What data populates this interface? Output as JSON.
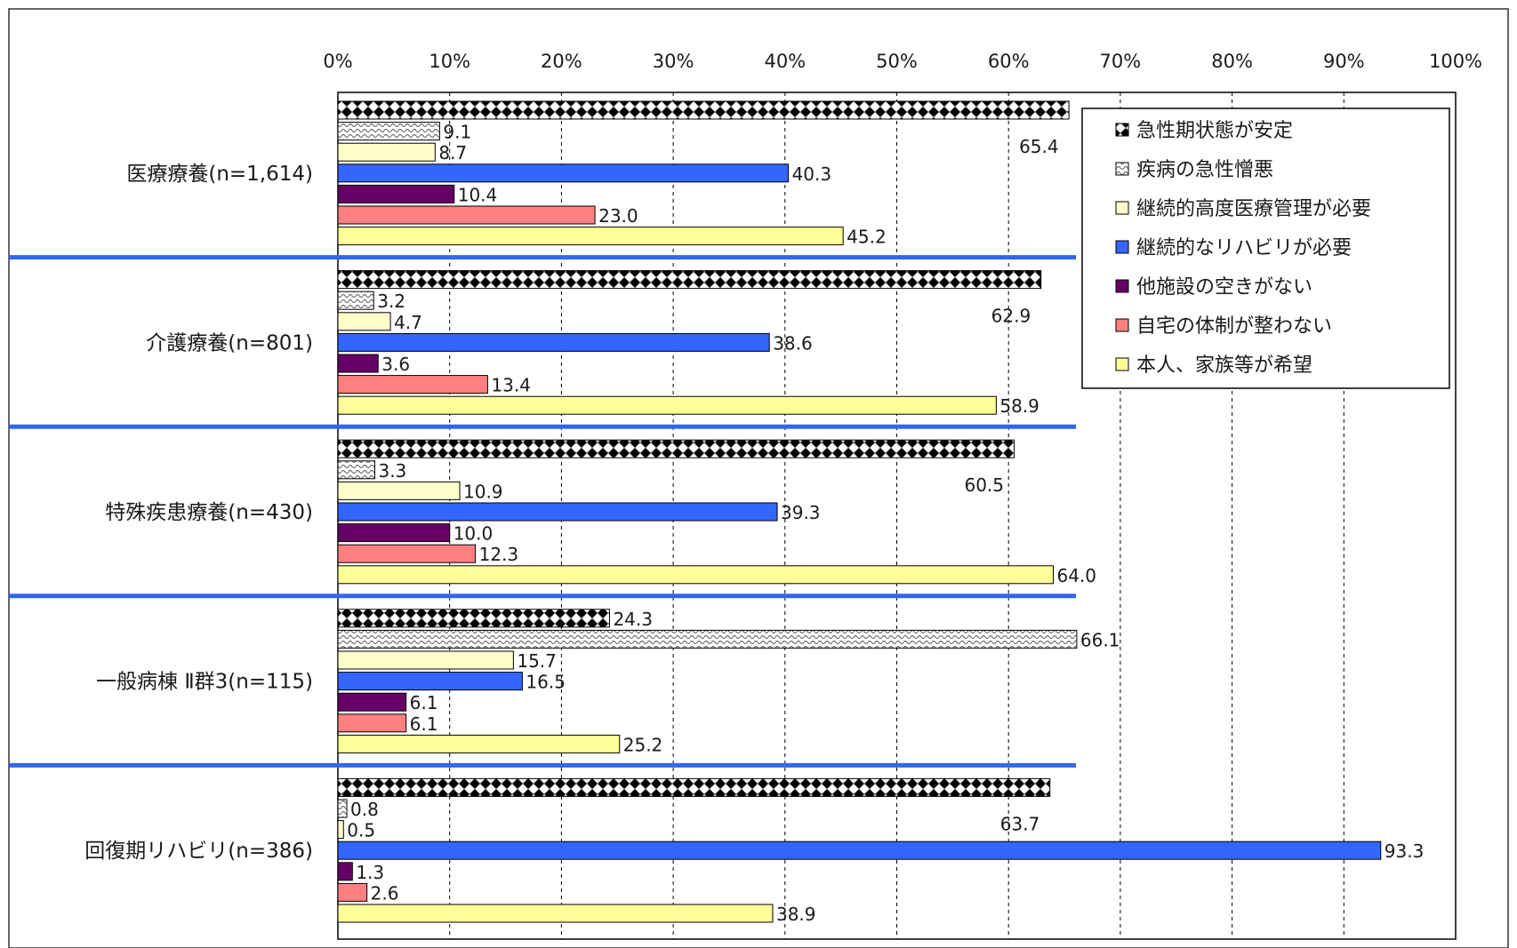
{
  "chart_data": {
    "type": "bar",
    "orientation": "horizontal",
    "title": "",
    "xlabel": "",
    "ylabel": "",
    "xlim": [
      0,
      100
    ],
    "x_ticks": [
      "0%",
      "10%",
      "20%",
      "30%",
      "40%",
      "50%",
      "60%",
      "70%",
      "80%",
      "90%",
      "100%"
    ],
    "grid": "vertical-dashed",
    "legend_position": "top-right",
    "categories": [
      "医療療養(n=1,614)",
      "介護療養(n=801)",
      "特殊疾患療養(n=430)",
      "一般病棟 Ⅱ群3(n=115)",
      "回復期リハビリ(n=386)"
    ],
    "series": [
      {
        "name": "急性期状態が安定",
        "color": "#000000",
        "pattern": "diamond-check",
        "values": [
          65.4,
          62.9,
          60.5,
          24.3,
          63.7
        ]
      },
      {
        "name": "疾病の急性憎悪",
        "color": "#bbbbbb",
        "pattern": "wave",
        "values": [
          9.1,
          3.2,
          3.3,
          66.1,
          0.8
        ]
      },
      {
        "name": "継続的高度医療管理が必要",
        "color": "#ffffcc",
        "pattern": "solid",
        "values": [
          8.7,
          4.7,
          10.9,
          15.7,
          0.5
        ]
      },
      {
        "name": "継続的なリハビリが必要",
        "color": "#3366ff",
        "pattern": "solid",
        "values": [
          40.3,
          38.6,
          39.3,
          16.5,
          93.3
        ]
      },
      {
        "name": "他施設の空きがない",
        "color": "#660066",
        "pattern": "solid",
        "values": [
          10.4,
          3.6,
          10.0,
          6.1,
          1.3
        ]
      },
      {
        "name": "自宅の体制が整わない",
        "color": "#ff8080",
        "pattern": "solid",
        "values": [
          23.0,
          13.4,
          12.3,
          6.1,
          2.6
        ]
      },
      {
        "name": "本人、家族等が希望",
        "color": "#ffff99",
        "pattern": "solid",
        "values": [
          45.2,
          58.9,
          64.0,
          25.2,
          38.9
        ]
      }
    ],
    "data_labels": [
      [
        "65.4",
        "62.9",
        "60.5",
        "24.3",
        "63.7"
      ],
      [
        "9.1",
        "3.2",
        "3.3",
        "66.1",
        "0.8"
      ],
      [
        "8.7",
        "4.7",
        "10.9",
        "15.7",
        "0.5"
      ],
      [
        "40.3",
        "38.6",
        "39.3",
        "16.5",
        "93.3"
      ],
      [
        "10.4",
        "3.6",
        "10.0",
        "6.1",
        "1.3"
      ],
      [
        "23.0",
        "13.4",
        "12.3",
        "6.1",
        "2.6"
      ],
      [
        "45.2",
        "58.9",
        "64.0",
        "25.2",
        "38.9"
      ]
    ]
  }
}
